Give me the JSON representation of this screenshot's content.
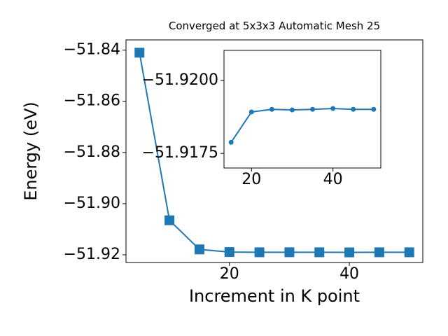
{
  "chart_data": [
    {
      "type": "line",
      "title": "Converged at 5x3x3 Automatic Mesh 25",
      "x_label": "Increment in K point",
      "y_label": "Energy (eV)",
      "x": [
        5,
        10,
        15,
        20,
        25,
        30,
        35,
        40,
        45,
        50
      ],
      "series": [
        {
          "color": "#1f77b4",
          "marker": "square",
          "values": [
            -51.841,
            -51.9065,
            -51.91788,
            -51.91892,
            -51.91901,
            -51.91899,
            -51.91901,
            -51.91904,
            -51.91901,
            -51.91901
          ]
        }
      ],
      "xlim": [
        2.75,
        52.25
      ],
      "xticks": [
        20,
        40
      ],
      "ylim": [
        -51.923,
        -51.836
      ],
      "yticks": [
        {
          "value": -51.92,
          "label": "−51.92"
        },
        {
          "value": -51.9,
          "label": "−51.90"
        },
        {
          "value": -51.88,
          "label": "−51.88"
        },
        {
          "value": -51.86,
          "label": "−51.86"
        },
        {
          "value": -51.84,
          "label": "−51.84"
        }
      ]
    },
    {
      "type": "line",
      "x": [
        15,
        20,
        25,
        30,
        35,
        40,
        45,
        50
      ],
      "series": [
        {
          "color": "#1f77b4",
          "marker": "circle",
          "values": [
            -51.91788,
            -51.91892,
            -51.91901,
            -51.91899,
            -51.91901,
            -51.91904,
            -51.91901,
            -51.91901
          ]
        }
      ],
      "xlim": [
        13.25,
        51.75
      ],
      "xticks": [
        20,
        40
      ],
      "ylim": [
        -51.917,
        -51.92103
      ],
      "yticks": [
        {
          "value": -51.9175,
          "label": "−51.9175"
        },
        {
          "value": -51.92,
          "label": "−51.9200"
        }
      ]
    }
  ]
}
